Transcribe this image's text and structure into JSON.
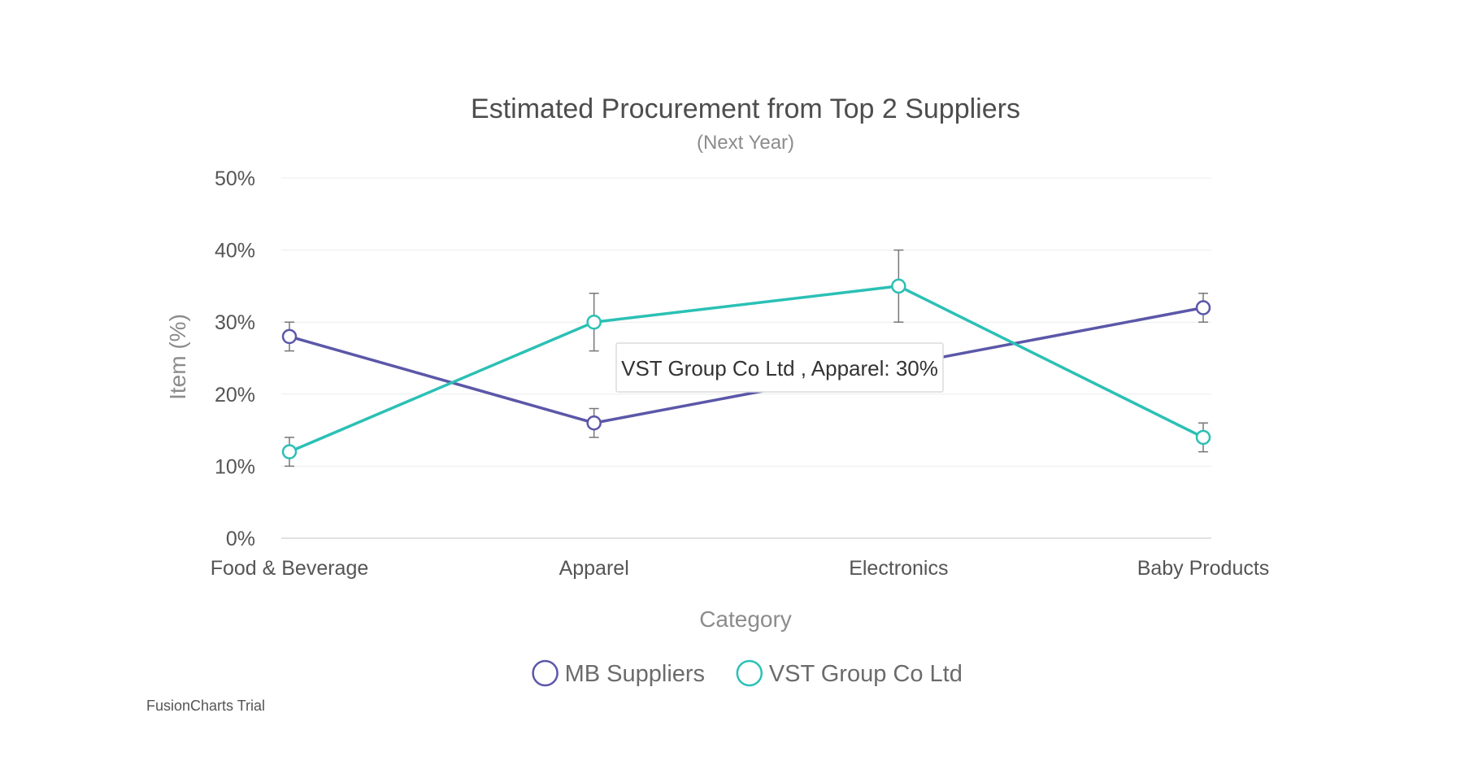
{
  "chart_data": {
    "type": "line",
    "title": "Estimated Procurement from Top 2 Suppliers",
    "subtitle": "(Next Year)",
    "xlabel": "Category",
    "ylabel": "Item (%)",
    "categories": [
      "Food & Beverage",
      "Apparel",
      "Electronics",
      "Baby Products"
    ],
    "ylim": [
      0,
      50
    ],
    "yticks": [
      0,
      10,
      20,
      30,
      40,
      50
    ],
    "ytick_labels": [
      "0%",
      "10%",
      "20%",
      "30%",
      "40%",
      "50%"
    ],
    "grid": true,
    "legend": "bottom-center",
    "series": [
      {
        "name": "MB Suppliers",
        "color": "#5b57a8",
        "values": [
          28,
          16,
          24,
          32
        ],
        "error": [
          2,
          2,
          2,
          2
        ]
      },
      {
        "name": "VST Group Co Ltd",
        "color": "#2bc0b5",
        "values": [
          12,
          30,
          35,
          14
        ],
        "error": [
          2,
          4,
          5,
          2
        ]
      }
    ],
    "tooltip": {
      "text": "VST Group Co Ltd , Apparel: 30%",
      "series_index": 1,
      "category_index": 1
    }
  },
  "watermark": "FusionCharts Trial"
}
